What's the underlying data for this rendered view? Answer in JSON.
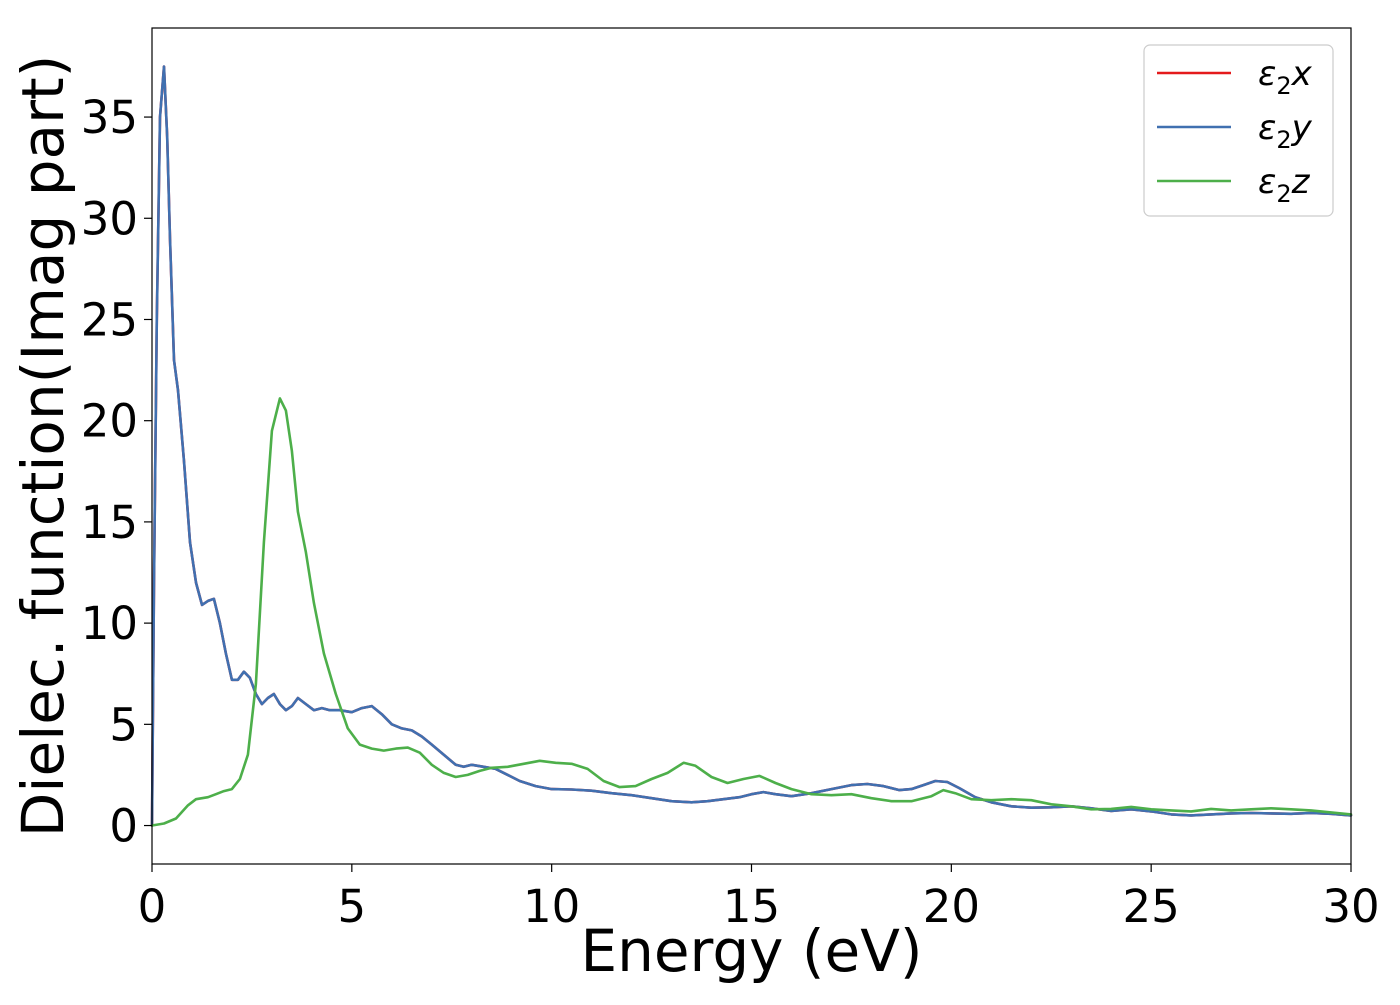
{
  "chart_data": {
    "type": "line",
    "title": "",
    "xlabel": "Energy (eV)",
    "ylabel": "Dielec. function(Imag part)",
    "xlim": [
      0,
      30
    ],
    "ylim": [
      -1.9,
      39.4
    ],
    "xticks": [
      0,
      5,
      10,
      15,
      20,
      25,
      30
    ],
    "yticks": [
      0,
      5,
      10,
      15,
      20,
      25,
      30,
      35
    ],
    "xtick_labels": [
      "0",
      "5",
      "10",
      "15",
      "20",
      "25",
      "30"
    ],
    "ytick_labels": [
      "0",
      "5",
      "10",
      "15",
      "20",
      "25",
      "30",
      "35"
    ],
    "grid": false,
    "legend_position": "top-right",
    "series": [
      {
        "name": "ε₂x",
        "legend_main": "ε",
        "legend_sub": "2",
        "legend_var": "x",
        "color": "#e41a1c",
        "x": [
          0,
          0.05,
          0.12,
          0.2,
          0.3,
          0.38,
          0.45,
          0.55,
          0.65,
          0.8,
          0.95,
          1.1,
          1.25,
          1.4,
          1.55,
          1.7,
          1.85,
          2.0,
          2.15,
          2.3,
          2.45,
          2.6,
          2.75,
          2.9,
          3.05,
          3.2,
          3.35,
          3.5,
          3.65,
          3.85,
          4.05,
          4.25,
          4.45,
          4.7,
          5.0,
          5.25,
          5.5,
          5.75,
          6.0,
          6.25,
          6.5,
          6.75,
          7.0,
          7.3,
          7.6,
          7.8,
          8.0,
          8.3,
          8.6,
          8.9,
          9.2,
          9.6,
          10.0,
          10.5,
          11.0,
          11.5,
          12.0,
          12.5,
          13.0,
          13.5,
          13.9,
          14.3,
          14.7,
          15.0,
          15.3,
          15.6,
          16.0,
          16.5,
          17.0,
          17.5,
          17.9,
          18.3,
          18.7,
          19.0,
          19.3,
          19.6,
          19.9,
          20.2,
          20.6,
          21.0,
          21.5,
          22.0,
          22.5,
          23.0,
          23.5,
          24.0,
          24.5,
          25.0,
          25.5,
          26.0,
          26.5,
          27.0,
          27.5,
          28.0,
          28.5,
          29.0,
          29.5,
          30.0
        ],
        "y": [
          0,
          12,
          25,
          35,
          37.5,
          34,
          29,
          23,
          21.5,
          18,
          14,
          12,
          10.9,
          11.1,
          11.2,
          10,
          8.5,
          7.2,
          7.2,
          7.6,
          7.3,
          6.5,
          6.0,
          6.3,
          6.5,
          6.0,
          5.7,
          5.9,
          6.3,
          6.0,
          5.7,
          5.8,
          5.7,
          5.7,
          5.6,
          5.8,
          5.9,
          5.5,
          5.0,
          4.8,
          4.7,
          4.4,
          4.0,
          3.5,
          3.0,
          2.9,
          3.0,
          2.9,
          2.8,
          2.5,
          2.2,
          1.95,
          1.8,
          1.78,
          1.72,
          1.6,
          1.5,
          1.35,
          1.2,
          1.15,
          1.2,
          1.3,
          1.4,
          1.55,
          1.65,
          1.55,
          1.45,
          1.6,
          1.8,
          2.0,
          2.05,
          1.95,
          1.75,
          1.8,
          2.0,
          2.2,
          2.15,
          1.85,
          1.4,
          1.15,
          0.95,
          0.88,
          0.9,
          0.95,
          0.85,
          0.72,
          0.8,
          0.7,
          0.55,
          0.5,
          0.55,
          0.6,
          0.62,
          0.6,
          0.58,
          0.62,
          0.58,
          0.5
        ]
      },
      {
        "name": "ε₂y",
        "legend_main": "ε",
        "legend_sub": "2",
        "legend_var": "y",
        "color": "#4070b0",
        "x": [
          0,
          0.05,
          0.12,
          0.2,
          0.3,
          0.38,
          0.45,
          0.55,
          0.65,
          0.8,
          0.95,
          1.1,
          1.25,
          1.4,
          1.55,
          1.7,
          1.85,
          2.0,
          2.15,
          2.3,
          2.45,
          2.6,
          2.75,
          2.9,
          3.05,
          3.2,
          3.35,
          3.5,
          3.65,
          3.85,
          4.05,
          4.25,
          4.45,
          4.7,
          5.0,
          5.25,
          5.5,
          5.75,
          6.0,
          6.25,
          6.5,
          6.75,
          7.0,
          7.3,
          7.6,
          7.8,
          8.0,
          8.3,
          8.6,
          8.9,
          9.2,
          9.6,
          10.0,
          10.5,
          11.0,
          11.5,
          12.0,
          12.5,
          13.0,
          13.5,
          13.9,
          14.3,
          14.7,
          15.0,
          15.3,
          15.6,
          16.0,
          16.5,
          17.0,
          17.5,
          17.9,
          18.3,
          18.7,
          19.0,
          19.3,
          19.6,
          19.9,
          20.2,
          20.6,
          21.0,
          21.5,
          22.0,
          22.5,
          23.0,
          23.5,
          24.0,
          24.5,
          25.0,
          25.5,
          26.0,
          26.5,
          27.0,
          27.5,
          28.0,
          28.5,
          29.0,
          29.5,
          30.0
        ],
        "y": [
          0,
          12,
          25,
          35,
          37.5,
          34,
          29,
          23,
          21.5,
          18,
          14,
          12,
          10.9,
          11.1,
          11.2,
          10,
          8.5,
          7.2,
          7.2,
          7.6,
          7.3,
          6.5,
          6.0,
          6.3,
          6.5,
          6.0,
          5.7,
          5.9,
          6.3,
          6.0,
          5.7,
          5.8,
          5.7,
          5.7,
          5.6,
          5.8,
          5.9,
          5.5,
          5.0,
          4.8,
          4.7,
          4.4,
          4.0,
          3.5,
          3.0,
          2.9,
          3.0,
          2.9,
          2.8,
          2.5,
          2.2,
          1.95,
          1.8,
          1.78,
          1.72,
          1.6,
          1.5,
          1.35,
          1.2,
          1.15,
          1.2,
          1.3,
          1.4,
          1.55,
          1.65,
          1.55,
          1.45,
          1.6,
          1.8,
          2.0,
          2.05,
          1.95,
          1.75,
          1.8,
          2.0,
          2.2,
          2.15,
          1.85,
          1.4,
          1.15,
          0.95,
          0.88,
          0.9,
          0.95,
          0.85,
          0.72,
          0.8,
          0.7,
          0.55,
          0.5,
          0.55,
          0.6,
          0.62,
          0.6,
          0.58,
          0.62,
          0.58,
          0.5
        ]
      },
      {
        "name": "ε₂z",
        "legend_main": "ε",
        "legend_sub": "2",
        "legend_var": "z",
        "color": "#4daf4a",
        "x": [
          0,
          0.3,
          0.6,
          0.9,
          1.1,
          1.4,
          1.6,
          1.8,
          2.0,
          2.2,
          2.4,
          2.6,
          2.8,
          3.0,
          3.2,
          3.35,
          3.5,
          3.65,
          3.85,
          4.05,
          4.3,
          4.6,
          4.9,
          5.2,
          5.5,
          5.8,
          6.1,
          6.4,
          6.7,
          7.0,
          7.3,
          7.6,
          7.9,
          8.2,
          8.5,
          8.9,
          9.3,
          9.7,
          10.1,
          10.5,
          10.9,
          11.3,
          11.7,
          12.1,
          12.5,
          12.9,
          13.3,
          13.6,
          14.0,
          14.4,
          14.8,
          15.2,
          15.6,
          16.0,
          16.5,
          17.0,
          17.5,
          18.0,
          18.5,
          19.0,
          19.5,
          19.8,
          20.1,
          20.5,
          21.0,
          21.5,
          22.0,
          22.5,
          23.0,
          23.5,
          24.0,
          24.5,
          25.0,
          25.5,
          26.0,
          26.5,
          27.0,
          27.5,
          28.0,
          28.5,
          29.0,
          29.5,
          30.0
        ],
        "y": [
          0,
          0.1,
          0.35,
          1.0,
          1.3,
          1.4,
          1.55,
          1.7,
          1.8,
          2.3,
          3.5,
          7.0,
          14.0,
          19.5,
          21.1,
          20.5,
          18.5,
          15.5,
          13.5,
          11.0,
          8.5,
          6.5,
          4.8,
          4.0,
          3.8,
          3.7,
          3.8,
          3.85,
          3.6,
          3.0,
          2.6,
          2.4,
          2.5,
          2.7,
          2.85,
          2.9,
          3.05,
          3.2,
          3.1,
          3.05,
          2.8,
          2.2,
          1.9,
          1.95,
          2.3,
          2.6,
          3.1,
          2.95,
          2.4,
          2.1,
          2.3,
          2.45,
          2.1,
          1.8,
          1.55,
          1.5,
          1.55,
          1.35,
          1.2,
          1.2,
          1.45,
          1.75,
          1.6,
          1.3,
          1.25,
          1.3,
          1.25,
          1.05,
          0.95,
          0.8,
          0.82,
          0.92,
          0.8,
          0.75,
          0.7,
          0.82,
          0.75,
          0.8,
          0.85,
          0.8,
          0.75,
          0.65,
          0.55
        ]
      }
    ]
  }
}
